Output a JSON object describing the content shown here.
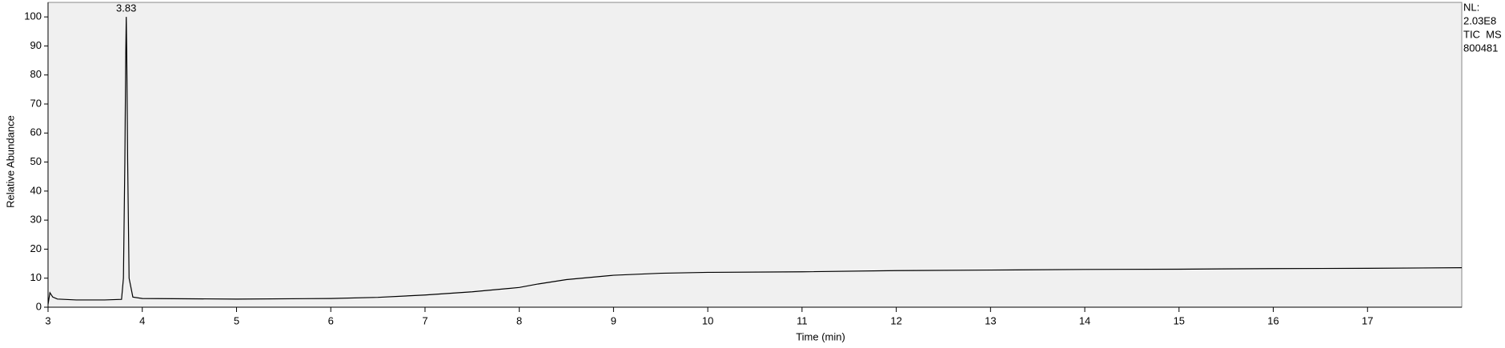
{
  "chart_data": {
    "type": "line",
    "xlabel": "Time (min)",
    "ylabel": "Relative Abundance",
    "annotations": [
      {
        "text": "3.83",
        "x": 3.83,
        "y": 100
      }
    ],
    "side_labels": [
      "NL:",
      "2.03E8",
      "TIC  MS",
      "800481"
    ],
    "x": [
      3.0,
      3.02,
      3.05,
      3.1,
      3.3,
      3.6,
      3.78,
      3.8,
      3.815,
      3.825,
      3.83,
      3.835,
      3.845,
      3.86,
      3.9,
      4.0,
      5.0,
      6.0,
      6.5,
      7.0,
      7.5,
      8.0,
      8.2,
      8.5,
      9.0,
      9.5,
      10.0,
      11.0,
      12.0,
      13.0,
      14.0,
      15.0,
      16.0,
      17.0,
      18.0
    ],
    "series": [
      {
        "name": "TIC",
        "color": "#000000",
        "values": [
          1,
          5,
          3.5,
          2.8,
          2.5,
          2.5,
          2.7,
          10,
          50,
          88,
          100,
          88,
          50,
          10,
          3.5,
          3,
          2.8,
          3,
          3.4,
          4.2,
          5.3,
          6.8,
          8,
          9.5,
          11,
          11.7,
          12,
          12.2,
          12.6,
          12.8,
          13,
          13.1,
          13.3,
          13.4,
          13.6
        ]
      }
    ],
    "xlim": [
      3,
      18
    ],
    "ylim": [
      0,
      105
    ],
    "xticks": [
      3,
      4,
      5,
      6,
      7,
      8,
      9,
      10,
      11,
      12,
      13,
      14,
      15,
      16,
      17
    ],
    "yticks": [
      0,
      10,
      20,
      30,
      40,
      50,
      60,
      70,
      80,
      90,
      100
    ],
    "background": "#f0f0f0"
  }
}
